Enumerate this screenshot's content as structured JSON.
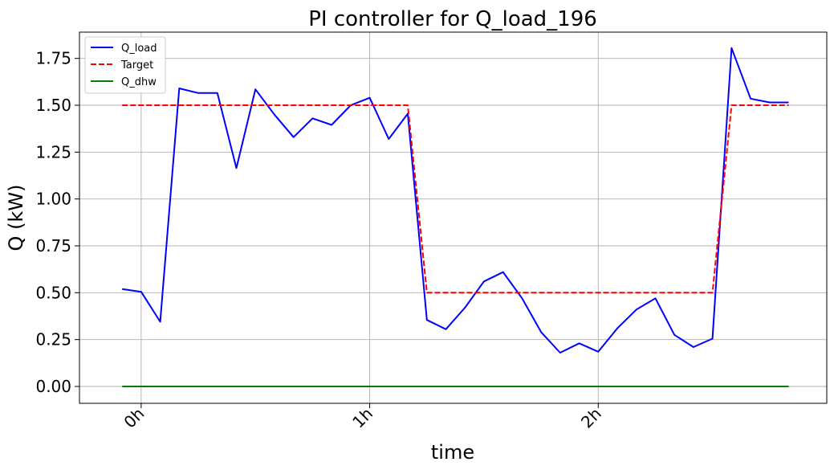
{
  "chart_data": {
    "type": "line",
    "title": "PI controller for Q_load_196",
    "xlabel": "time",
    "ylabel": "Q (kW)",
    "x_unit": "hours",
    "xlim": [
      -0.27,
      3.0
    ],
    "ylim": [
      -0.09,
      1.89
    ],
    "x_ticks": [
      {
        "value": 0,
        "label": "0h"
      },
      {
        "value": 1,
        "label": "1h"
      },
      {
        "value": 2,
        "label": "2h"
      }
    ],
    "y_ticks": [
      {
        "value": 0.0,
        "label": "0.00"
      },
      {
        "value": 0.25,
        "label": "0.25"
      },
      {
        "value": 0.5,
        "label": "0.50"
      },
      {
        "value": 0.75,
        "label": "0.75"
      },
      {
        "value": 1.0,
        "label": "1.00"
      },
      {
        "value": 1.25,
        "label": "1.25"
      },
      {
        "value": 1.5,
        "label": "1.50"
      },
      {
        "value": 1.75,
        "label": "1.75"
      }
    ],
    "grid": true,
    "legend_position": "top-left",
    "series": [
      {
        "name": "Q_load",
        "color": "#0000ff",
        "style": "solid",
        "x": [
          -0.0833,
          0.0,
          0.0833,
          0.1667,
          0.25,
          0.3333,
          0.4167,
          0.5,
          0.5833,
          0.6667,
          0.75,
          0.8333,
          0.9167,
          1.0,
          1.0833,
          1.1667,
          1.25,
          1.3333,
          1.4167,
          1.5,
          1.5833,
          1.6667,
          1.75,
          1.8333,
          1.9167,
          2.0,
          2.0833,
          2.1667,
          2.25,
          2.3333,
          2.4167,
          2.5,
          2.5833,
          2.6667,
          2.75,
          2.8333
        ],
        "y": [
          0.52,
          0.505,
          0.345,
          1.59,
          1.565,
          1.565,
          1.165,
          1.585,
          1.45,
          1.33,
          1.43,
          1.395,
          1.5,
          1.54,
          1.32,
          1.455,
          0.355,
          0.305,
          0.42,
          0.56,
          0.61,
          0.47,
          0.29,
          0.18,
          0.23,
          0.185,
          0.31,
          0.41,
          0.47,
          0.275,
          0.21,
          0.255,
          1.805,
          1.535,
          1.515,
          1.515
        ]
      },
      {
        "name": "Target",
        "color": "#ff0000",
        "style": "dashed",
        "x": [
          -0.0833,
          0.0,
          0.0833,
          0.1667,
          0.25,
          0.3333,
          0.4167,
          0.5,
          0.5833,
          0.6667,
          0.75,
          0.8333,
          0.9167,
          1.0,
          1.0833,
          1.1667,
          1.25,
          1.3333,
          1.4167,
          1.5,
          1.5833,
          1.6667,
          1.75,
          1.8333,
          1.9167,
          2.0,
          2.0833,
          2.1667,
          2.25,
          2.3333,
          2.4167,
          2.5,
          2.5833,
          2.6667,
          2.75,
          2.8333
        ],
        "y": [
          1.5,
          1.5,
          1.5,
          1.5,
          1.5,
          1.5,
          1.5,
          1.5,
          1.5,
          1.5,
          1.5,
          1.5,
          1.5,
          1.5,
          1.5,
          1.5,
          0.5,
          0.5,
          0.5,
          0.5,
          0.5,
          0.5,
          0.5,
          0.5,
          0.5,
          0.5,
          0.5,
          0.5,
          0.5,
          0.5,
          0.5,
          0.5,
          1.5,
          1.5,
          1.5,
          1.5
        ]
      },
      {
        "name": "Q_dhw",
        "color": "#008000",
        "style": "solid",
        "x": [
          -0.0833,
          2.8333
        ],
        "y": [
          0.0,
          0.0
        ]
      }
    ]
  }
}
